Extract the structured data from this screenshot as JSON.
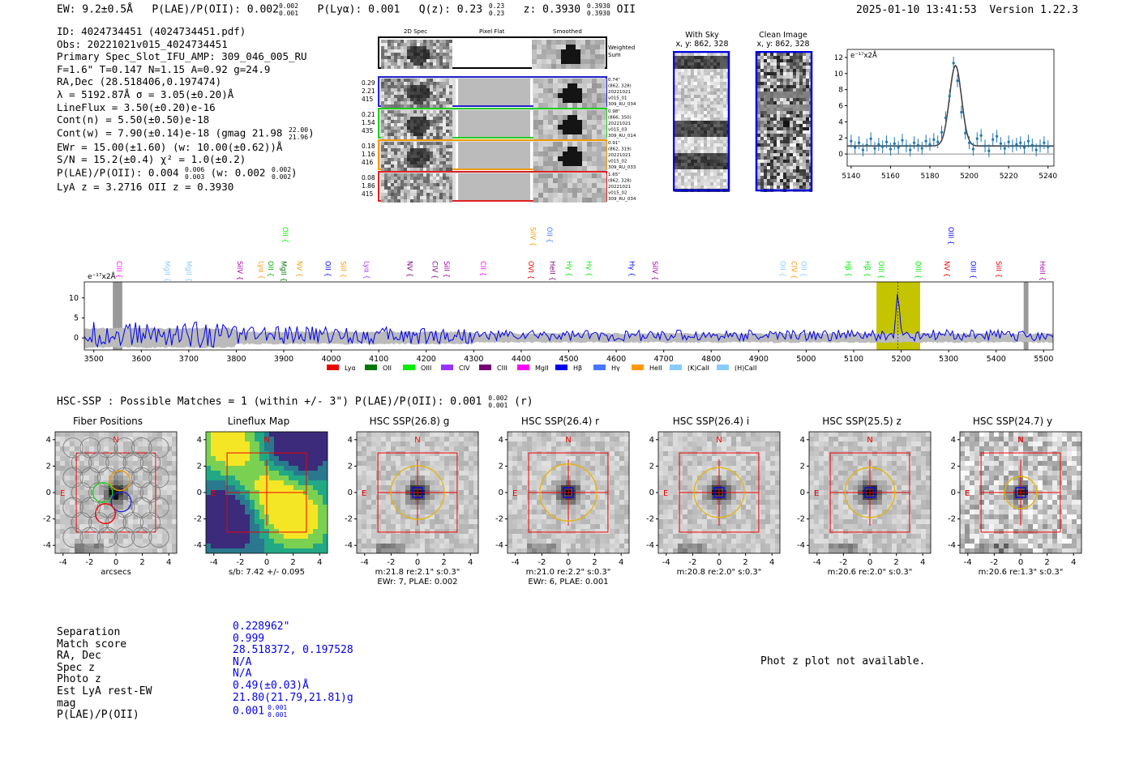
{
  "header": {
    "ew": "EW: 9.2±0.5Å",
    "plae_label": "P(LAE)/P(OII): 0.002",
    "plae_hi": "0.002",
    "plae_lo": "0.001",
    "plya": "P(Lyα): 0.001",
    "qz_label": "Q(z): 0.23",
    "qz_hi": "0.23",
    "qz_lo": "0.23",
    "z_label": "z: 0.3930",
    "z_hi": "0.3930",
    "z_lo": "0.3930",
    "z_line": "OII",
    "timestamp": "2025-01-10 13:41:53",
    "version": "Version 1.22.3"
  },
  "info": {
    "id": "ID: 4024734451 (4024734451.pdf)",
    "obs": "Obs: 20221021v015_4024734451",
    "primary": "Primary Spec_Slot_IFU_AMP: 309_046_005_RU",
    "fit": "F=1.6\"  T=0.147  N=1.15  A=0.92  g=24.9",
    "radec": "RA,Dec (28.518406,0.197474)",
    "lambda": "λ = 5192.87Å  σ = 3.05(±0.20)Å",
    "lineflux": "LineFlux = 3.50(±0.20)e-16",
    "contn": "Cont(n) = 5.50(±0.50)e-18",
    "contw": "Cont(w) = 7.90(±0.14)e-18 (gmag 21.98",
    "contw_hi": "22.00",
    "contw_lo": "21.96",
    "contw_end": ")",
    "ewr": "EWr = 15.00(±1.60) (w: 10.00(±0.62))Å",
    "sn": "S/N = 15.2(±0.4)  χ² = 1.0(±0.2)",
    "plae": "P(LAE)/P(OII): 0.004",
    "plae_hi": "0.006",
    "plae_lo": "0.003",
    "plae_w": "(w: 0.002",
    "plae_w_hi": "0.002",
    "plae_w_lo": "0.002",
    "plae_end": ")",
    "lyaz": "LyA z = 3.2716  OII z = 0.3930"
  },
  "cutouts": {
    "col_2d": "2D Spec",
    "col_flat": "Pixel Flat",
    "col_smooth": "Smoothed",
    "weighted": "Weighted Sum",
    "rows": [
      {
        "left": [
          "0.29",
          "2.21",
          "415"
        ],
        "right": [
          "0.74\"",
          "(862, 328)",
          "20221021",
          "v015_01",
          "309_RU_034"
        ],
        "color": "#2222cc"
      },
      {
        "left": [
          "0.21",
          "1.54",
          "435"
        ],
        "right": [
          "0.98\"",
          "(866, 350)",
          "20221021",
          "v015_03",
          "309_RU_014"
        ],
        "color": "#22cc22"
      },
      {
        "left": [
          "0.18",
          "1.16",
          "416"
        ],
        "right": [
          "0.91\"",
          "(862, 319)",
          "20221021",
          "v015_02",
          "309_RU_033"
        ],
        "color": "#ee9900"
      },
      {
        "left": [
          "0.08",
          "1.86",
          "415"
        ],
        "right": [
          "1.65\"",
          "(862, 328)",
          "20221021",
          "v015_02",
          "309_RU_034"
        ],
        "color": "#dd2222"
      }
    ],
    "with_sky": "With Sky",
    "with_sky_xy": "x, y: 862, 328",
    "clean": "Clean Image",
    "clean_xy": "x, y: 862, 328"
  },
  "zoom_units": "e⁻¹⁷x2Å",
  "spec_units": "e⁻¹⁷x2Å",
  "chart_data": [
    {
      "type": "line",
      "title": "",
      "xlabel": "",
      "ylabel": "e-17 x2A",
      "xlim": [
        5138,
        5243
      ],
      "ylim": [
        -1.5,
        13
      ],
      "xticks": [
        5140,
        5160,
        5180,
        5200,
        5220,
        5240
      ],
      "yticks": [
        0,
        2,
        4,
        6,
        8,
        10,
        12
      ],
      "fit_center": 5193,
      "fit_sigma": 3.05,
      "fit_amp": 10.0,
      "fit_cont": 1.0,
      "x": [
        5140,
        5142,
        5144,
        5146,
        5148,
        5150,
        5152,
        5154,
        5156,
        5158,
        5160,
        5162,
        5164,
        5166,
        5168,
        5170,
        5172,
        5174,
        5176,
        5178,
        5180,
        5182,
        5184,
        5186,
        5188,
        5190,
        5192,
        5194,
        5196,
        5198,
        5200,
        5202,
        5204,
        5206,
        5208,
        5210,
        5212,
        5214,
        5216,
        5218,
        5220,
        5222,
        5224,
        5226,
        5228,
        5230,
        5232,
        5234,
        5236,
        5238,
        5240
      ],
      "y": [
        1.6,
        0.8,
        1.4,
        0.5,
        1.1,
        1.9,
        0.7,
        1.2,
        0.9,
        1.5,
        0.6,
        1.3,
        0.8,
        1.7,
        1.0,
        0.5,
        1.4,
        1.1,
        0.7,
        1.6,
        1.2,
        1.8,
        1.5,
        2.7,
        4.5,
        7.2,
        11.3,
        9.1,
        5.2,
        2.6,
        1.4,
        0.6,
        1.9,
        2.3,
        1.0,
        0.4,
        1.8,
        2.2,
        1.3,
        0.7,
        1.5,
        1.0,
        1.2,
        1.4,
        0.8,
        1.6,
        1.1,
        0.5,
        1.0,
        1.4,
        0.9
      ]
    },
    {
      "type": "line",
      "xlim": [
        3480,
        5520
      ],
      "ylim": [
        -3,
        14
      ],
      "xticks": [
        3500,
        3600,
        3700,
        3800,
        3900,
        4000,
        4100,
        4200,
        4300,
        4400,
        4500,
        4600,
        4700,
        4800,
        4900,
        5000,
        5100,
        5200,
        5300,
        5400,
        5500
      ],
      "yticks": [
        0,
        5,
        10
      ],
      "highlight_range": [
        5148,
        5240
      ],
      "peak_wave": 5193,
      "peak_value": 11.3,
      "legend": [
        "Lyα",
        "OII",
        "OIII",
        "CIV",
        "CIII",
        "MgII",
        "Hβ",
        "Hγ",
        "HeII",
        "(K)CaII",
        "(H)CaII"
      ],
      "legend_colors": [
        "#ee0000",
        "#007700",
        "#00ee00",
        "#9933ff",
        "#770077",
        "#ff00ff",
        "#0000ee",
        "#4477ff",
        "#ff9900",
        "#88ccff",
        "#88ccff"
      ],
      "lines_top": [
        {
          "label": "OII",
          "wave": 3903,
          "color": "#00ee00"
        },
        {
          "label": "SiIV",
          "wave": 4425,
          "color": "#ff9900"
        },
        {
          "label": "OII",
          "wave": 4460,
          "color": "#4477ff"
        },
        {
          "label": "OIII",
          "wave": 5305,
          "color": "#0000ee"
        }
      ],
      "lines_mid": [
        {
          "label": "CIII",
          "wave": 3553,
          "color": "#ff00ff"
        },
        {
          "label": "MgII",
          "wave": 3655,
          "color": "#88ccff"
        },
        {
          "label": "MgII",
          "wave": 3700,
          "color": "#88ccff"
        },
        {
          "label": "SiIV",
          "wave": 3808,
          "color": "#aa00aa"
        },
        {
          "label": "Lyα",
          "wave": 3853,
          "color": "#ff9900"
        },
        {
          "label": "OII",
          "wave": 3873,
          "color": "#00aa00"
        },
        {
          "label": "MgII",
          "wave": 3900,
          "color": "#007700"
        },
        {
          "label": "NV",
          "wave": 3933,
          "color": "#ff9900"
        },
        {
          "label": "OII",
          "wave": 3993,
          "color": "#0000ee"
        },
        {
          "label": "SiII",
          "wave": 4025,
          "color": "#ff9900"
        },
        {
          "label": "Lyα",
          "wave": 4075,
          "color": "#aa33ff"
        },
        {
          "label": "NV",
          "wave": 4165,
          "color": "#770077"
        },
        {
          "label": "CIV",
          "wave": 4218,
          "color": "#770077"
        },
        {
          "label": "SiII",
          "wave": 4243,
          "color": "#aa00aa"
        },
        {
          "label": "CII",
          "wave": 4320,
          "color": "#ff00ff"
        },
        {
          "label": "OVI",
          "wave": 4421,
          "color": "#ee0000"
        },
        {
          "label": "HeII",
          "wave": 4466,
          "color": "#770077"
        },
        {
          "label": "Hγ",
          "wave": 4501,
          "color": "#00ee00"
        },
        {
          "label": "Hγ",
          "wave": 4543,
          "color": "#00ee00"
        },
        {
          "label": "Hγ",
          "wave": 4633,
          "color": "#0000ee"
        },
        {
          "label": "SiIV",
          "wave": 4682,
          "color": "#aa00aa"
        },
        {
          "label": "OII",
          "wave": 4951,
          "color": "#88ccff"
        },
        {
          "label": "CIV",
          "wave": 4975,
          "color": "#ff9900"
        },
        {
          "label": "OII",
          "wave": 4995,
          "color": "#88ccff"
        },
        {
          "label": "Hβ",
          "wave": 5089,
          "color": "#00ee00"
        },
        {
          "label": "Hβ",
          "wave": 5129,
          "color": "#00ee00"
        },
        {
          "label": "OIII",
          "wave": 5158,
          "color": "#00ee00"
        },
        {
          "label": "OIII",
          "wave": 5236,
          "color": "#00ee00"
        },
        {
          "label": "NV",
          "wave": 5296,
          "color": "#ee0000"
        },
        {
          "label": "OIII",
          "wave": 5352,
          "color": "#0000ee"
        },
        {
          "label": "SiII",
          "wave": 5406,
          "color": "#ee0000"
        },
        {
          "label": "HeII",
          "wave": 5498,
          "color": "#aa00aa"
        }
      ]
    }
  ],
  "hsc": {
    "summary": "HSC-SSP : Possible Matches = 1 (within +/- 3\")  P(LAE)/P(OII): 0.001",
    "summary_hi": "0.002",
    "summary_lo": "0.001",
    "summary_end": "(r)",
    "compass_n": "N",
    "compass_e": "E",
    "axis_ticks": [
      "-4",
      "-2",
      "0",
      "2",
      "4"
    ],
    "panels": [
      {
        "title": "Fiber Positions",
        "caption1": "arcsecs",
        "caption2": "",
        "kind": "fibers"
      },
      {
        "title": "Lineflux Map",
        "caption1": "s/b: 7.42 +/- 0.095",
        "caption2": "",
        "kind": "lineflux"
      },
      {
        "title": "HSC SSP(26.8) g",
        "caption1": "m:21.8  re:2.1\"  s:0.3\"",
        "caption2": "EWr: 7, PLAE: 0.002",
        "kind": "img",
        "ell": [
          30,
          30
        ]
      },
      {
        "title": "HSC SSP(26.4) r",
        "caption1": "m:21.0  re:2.2\"  s:0.3\"",
        "caption2": "EWr: 6, PLAE: 0.001",
        "kind": "img",
        "ell": [
          32,
          32
        ]
      },
      {
        "title": "HSC SSP(26.4) i",
        "caption1": "m:20.8  re:2.0\"  s:0.3\"",
        "caption2": "",
        "kind": "img",
        "ell": [
          28,
          28
        ]
      },
      {
        "title": "HSC SSP(25.5) z",
        "caption1": "m:20.6  re:2.0\"  s:0.3\"",
        "caption2": "",
        "kind": "img",
        "ell": [
          28,
          28
        ]
      },
      {
        "title": "HSC SSP(24.7) y",
        "caption1": "m:20.6  re:1.3\"  s:0.3\"",
        "caption2": "",
        "kind": "img",
        "ell": [
          18,
          18
        ]
      }
    ]
  },
  "stats": {
    "labels": [
      "Separation",
      "Match score",
      "RA, Dec",
      "Spec z",
      "Photo z",
      "Est LyA rest-EW",
      "mag",
      "P(LAE)/P(OII)"
    ],
    "values": [
      "0.228962\"",
      "0.999",
      "28.518372, 0.197528",
      "N/A",
      "N/A",
      "0.49(±0.03)Å",
      "21.80(21.79,21.81)g",
      "0.001"
    ],
    "plae_hi": "0.001",
    "plae_lo": "0.001",
    "photz_msg": "Phot z plot not available."
  }
}
